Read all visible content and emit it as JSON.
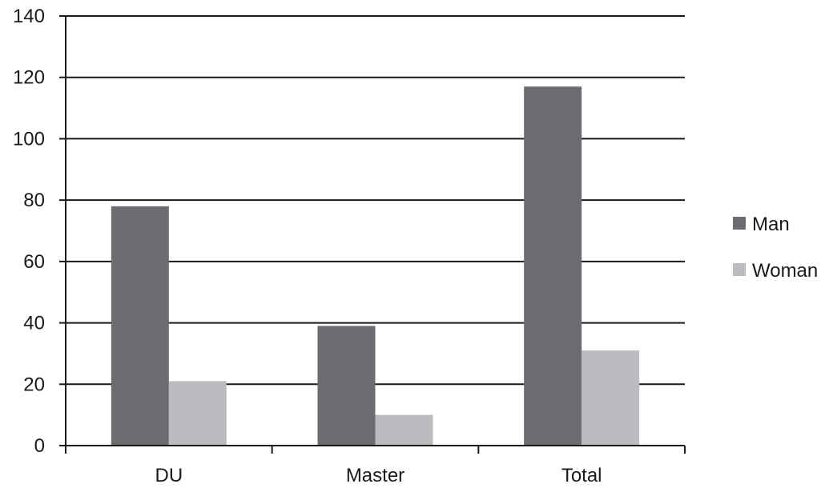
{
  "chart_data": {
    "type": "bar",
    "categories": [
      "DU",
      "Master",
      "Total"
    ],
    "series": [
      {
        "name": "Man",
        "values": [
          78,
          39,
          117
        ],
        "color": "#6b6c70"
      },
      {
        "name": "Woman",
        "values": [
          21,
          10,
          31
        ],
        "color": "#bbbcbf"
      }
    ],
    "ylim": [
      0,
      140
    ],
    "yticks": [
      "0",
      "20",
      "40",
      "60",
      "80",
      "100",
      "120",
      "140"
    ],
    "grid": true,
    "legend_position": "right"
  }
}
